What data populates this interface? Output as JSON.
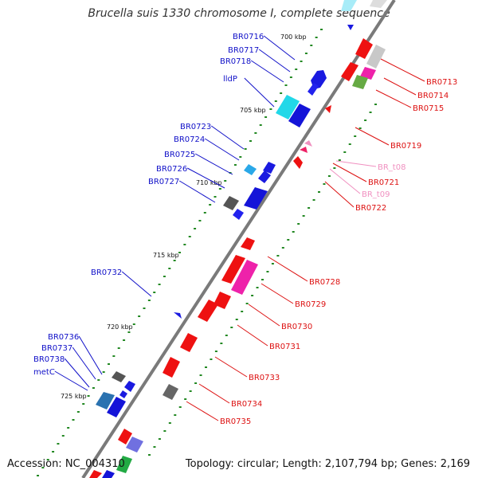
{
  "title": "Brucella suis 1330 chromosome I, complete sequence",
  "footer": {
    "accession": "Accession: NC_004310",
    "topology": "Topology: circular; Length: 2,107,794 bp; Genes: 2,169"
  },
  "colors": {
    "forward_label": "#1010c8",
    "reverse_label": "#dd1111",
    "trna_label": "#f090c0",
    "backbone": "#808080",
    "tick": "#228822"
  },
  "kbp_labels": [
    "700 kbp",
    "705 kbp",
    "710 kbp",
    "715 kbp",
    "720 kbp",
    "725 kbp"
  ],
  "forward_genes": [
    "BR0716",
    "BR0717",
    "BR0718",
    "lldP",
    "BR0723",
    "BR0724",
    "BR0725",
    "BR0726",
    "BR0727",
    "BR0732",
    "BR0736",
    "BR0737",
    "BR0738",
    "metC"
  ],
  "reverse_genes": [
    "BR0713",
    "BR0714",
    "BR0715",
    "BR0719",
    "BR0721",
    "BR0722",
    "BR0728",
    "BR0729",
    "BR0730",
    "BR0731",
    "BR0733",
    "BR0734",
    "BR0735"
  ],
  "trna_genes": [
    "BR_t08",
    "BR_t09"
  ]
}
